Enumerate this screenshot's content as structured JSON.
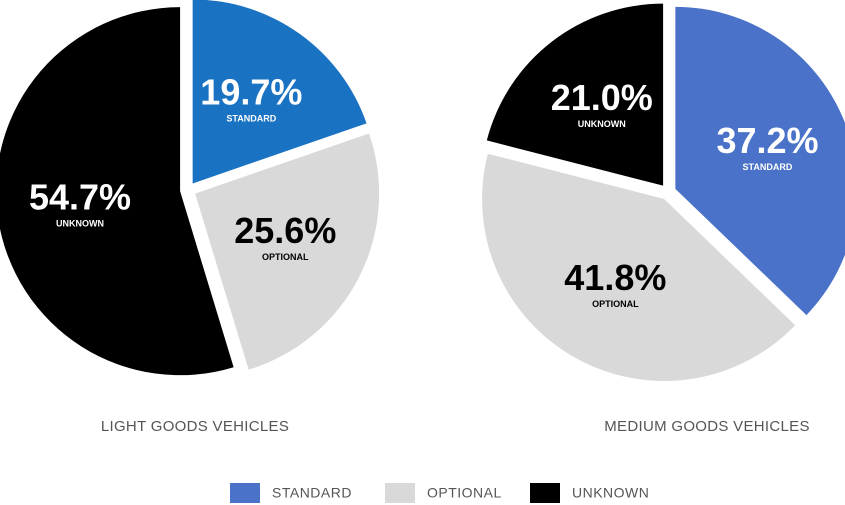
{
  "chart_data": [
    {
      "type": "pie",
      "title": "LIGHT GOODS VEHICLES",
      "categories": [
        "STANDARD",
        "OPTIONAL",
        "UNKNOWN"
      ],
      "values": [
        19.7,
        25.6,
        54.7
      ],
      "value_labels": [
        "19.7%",
        "25.6%",
        "54.7%"
      ],
      "colors": [
        "#1a72c2",
        "#d9d9d9",
        "#000000"
      ]
    },
    {
      "type": "pie",
      "title": "MEDIUM GOODS VEHICLES",
      "categories": [
        "STANDARD",
        "OPTIONAL",
        "UNKNOWN"
      ],
      "values": [
        37.2,
        41.8,
        21.0
      ],
      "value_labels": [
        "37.2%",
        "41.8%",
        "21.0%"
      ],
      "colors": [
        "#4a72c8",
        "#d9d9d9",
        "#000000"
      ]
    }
  ]
}
